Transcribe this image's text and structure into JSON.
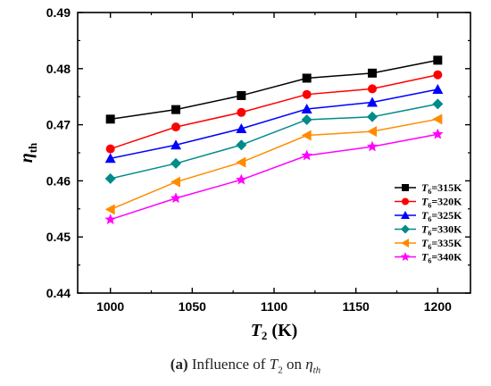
{
  "chart_data": {
    "type": "line",
    "x": [
      1000,
      1040,
      1080,
      1120,
      1160,
      1200
    ],
    "xlabel": "T",
    "xlabel_sub": "2",
    "xlabel_unit": "(K)",
    "ylabel": "η",
    "ylabel_sub": "th",
    "xlim": [
      980,
      1220
    ],
    "ylim": [
      0.44,
      0.49
    ],
    "xticks": [
      "1000",
      "1050",
      "1100",
      "1150",
      "1200"
    ],
    "yticks": [
      "0.44",
      "0.45",
      "0.46",
      "0.47",
      "0.48",
      "0.49"
    ],
    "legend_position": "bottom-right",
    "grid": false,
    "series": [
      {
        "name": "T",
        "name_sub": "6",
        "name_rest": "=315K",
        "color": "#000000",
        "marker": "square",
        "values": [
          0.471,
          0.4727,
          0.4752,
          0.4783,
          0.4792,
          0.4815
        ]
      },
      {
        "name": "T",
        "name_sub": "6",
        "name_rest": "=320K",
        "color": "#ff0000",
        "marker": "circle",
        "values": [
          0.4657,
          0.4696,
          0.4722,
          0.4754,
          0.4764,
          0.4789
        ]
      },
      {
        "name": "T",
        "name_sub": "6",
        "name_rest": "=325K",
        "color": "#0000ff",
        "marker": "triangle",
        "values": [
          0.464,
          0.4664,
          0.4693,
          0.4728,
          0.474,
          0.4763
        ]
      },
      {
        "name": "T",
        "name_sub": "6",
        "name_rest": "=330K",
        "color": "#008b8b",
        "marker": "diamond",
        "values": [
          0.4604,
          0.4631,
          0.4664,
          0.4709,
          0.4714,
          0.4737
        ]
      },
      {
        "name": "T",
        "name_sub": "6",
        "name_rest": "=335K",
        "color": "#ff8c00",
        "marker": "triangle-left",
        "values": [
          0.4549,
          0.4598,
          0.4633,
          0.4681,
          0.4688,
          0.471
        ]
      },
      {
        "name": "T",
        "name_sub": "6",
        "name_rest": "=340K",
        "color": "#ff00ff",
        "marker": "star",
        "values": [
          0.4531,
          0.4569,
          0.4602,
          0.4645,
          0.4661,
          0.4683
        ]
      }
    ]
  },
  "caption": {
    "label": "(a)",
    "text_before": " Influence of ",
    "var": "T",
    "var_sub": "2",
    "text_mid": " on ",
    "target": "η",
    "target_sub": "th"
  }
}
